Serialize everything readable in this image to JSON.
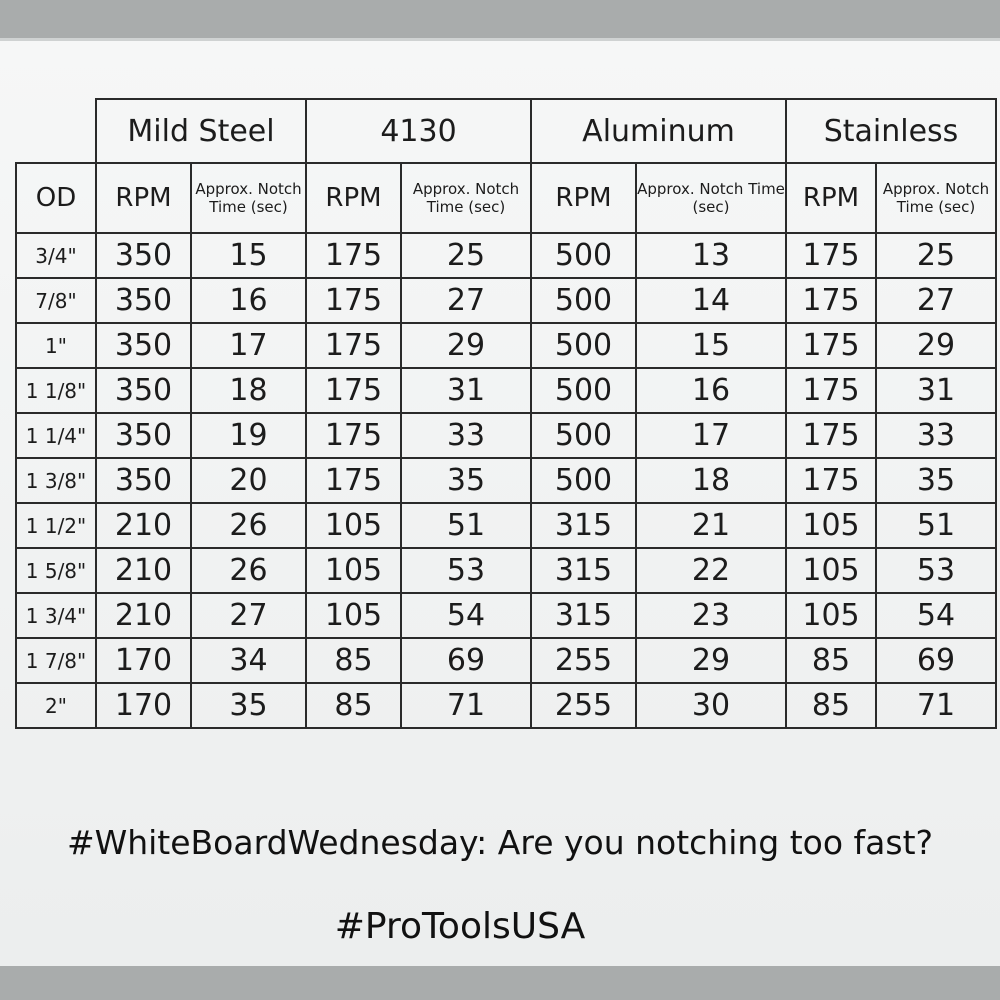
{
  "groups": [
    "Mild Steel",
    "4130",
    "Aluminum",
    "Stainless"
  ],
  "columns": [
    "OD",
    "RPM",
    "Approx. Notch Time (sec)",
    "RPM",
    "Approx. Notch Time (sec)",
    "RPM",
    "Approx. Notch Time (sec)",
    "RPM",
    "Approx. Notch Time (sec)"
  ],
  "rows": [
    [
      "3/4\"",
      350,
      15,
      175,
      25,
      500,
      13,
      175,
      25
    ],
    [
      "7/8\"",
      350,
      16,
      175,
      27,
      500,
      14,
      175,
      27
    ],
    [
      "1\"",
      350,
      17,
      175,
      29,
      500,
      15,
      175,
      29
    ],
    [
      "1 1/8\"",
      350,
      18,
      175,
      31,
      500,
      16,
      175,
      31
    ],
    [
      "1 1/4\"",
      350,
      19,
      175,
      33,
      500,
      17,
      175,
      33
    ],
    [
      "1 3/8\"",
      350,
      20,
      175,
      35,
      500,
      18,
      175,
      35
    ],
    [
      "1 1/2\"",
      210,
      26,
      105,
      51,
      315,
      21,
      105,
      51
    ],
    [
      "1 5/8\"",
      210,
      26,
      105,
      53,
      315,
      22,
      105,
      53
    ],
    [
      "1 3/4\"",
      210,
      27,
      105,
      54,
      315,
      23,
      105,
      54
    ],
    [
      "1 7/8\"",
      170,
      34,
      85,
      69,
      255,
      29,
      85,
      69
    ],
    [
      "2\"",
      170,
      35,
      85,
      71,
      255,
      30,
      85,
      71
    ]
  ],
  "footer": [
    "#WhiteBoardWednesday: Are you notching too fast?",
    "#ProToolsUSA"
  ]
}
